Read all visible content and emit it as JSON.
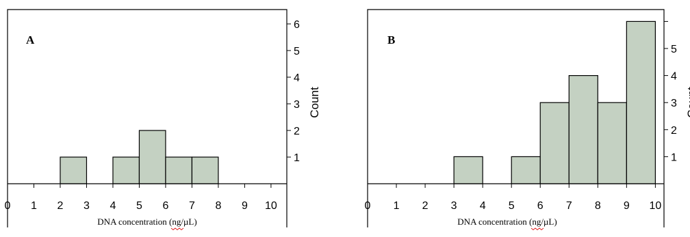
{
  "colors": {
    "bar_fill": "#c4d1c2",
    "bar_stroke": "#000000",
    "axis": "#000000",
    "spellcheck": "#e02020"
  },
  "chart_data": [
    {
      "type": "bar",
      "panel": "A",
      "bins": [
        {
          "x0": 2,
          "x1": 3,
          "count": 1
        },
        {
          "x0": 4,
          "x1": 5,
          "count": 1
        },
        {
          "x0": 5,
          "x1": 6,
          "count": 2
        },
        {
          "x0": 6,
          "x1": 7,
          "count": 1
        },
        {
          "x0": 7,
          "x1": 8,
          "count": 1
        }
      ],
      "x_ticks": [
        "0",
        "1",
        "2",
        "3",
        "4",
        "5",
        "6",
        "7",
        "8",
        "9",
        "10"
      ],
      "y_ticks": [
        "1",
        "2",
        "3",
        "4",
        "5",
        "6"
      ],
      "xlabel": "DNA concentration (ng/µL)",
      "ylabel": "Count",
      "xlim": [
        0,
        10.6
      ],
      "ylim": [
        0,
        7
      ],
      "y_axis_position": "right",
      "grid": false
    },
    {
      "type": "bar",
      "panel": "B",
      "bins": [
        {
          "x0": 3,
          "x1": 4,
          "count": 1
        },
        {
          "x0": 5,
          "x1": 6,
          "count": 1
        },
        {
          "x0": 6,
          "x1": 7,
          "count": 3
        },
        {
          "x0": 7,
          "x1": 8,
          "count": 4
        },
        {
          "x0": 8,
          "x1": 9,
          "count": 3
        },
        {
          "x0": 9,
          "x1": 10,
          "count": 6
        }
      ],
      "x_ticks": [
        "0",
        "1",
        "2",
        "3",
        "4",
        "5",
        "6",
        "7",
        "8",
        "9",
        "10"
      ],
      "y_ticks": [
        "1",
        "2",
        "3",
        "4",
        "5"
      ],
      "xlabel": "DNA concentration (ng/µL)",
      "ylabel": "Count",
      "xlim": [
        0,
        10.3
      ],
      "ylim": [
        0,
        6.5
      ],
      "y_axis_position": "right",
      "grid": false
    }
  ]
}
